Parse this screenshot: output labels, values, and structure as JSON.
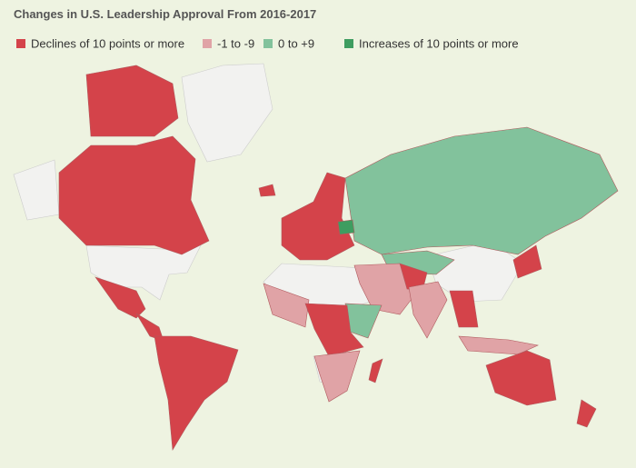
{
  "title": "Changes in U.S. Leadership Approval From 2016-2017",
  "legend": [
    {
      "label": "Declines of 10 points or more",
      "color": "#d4434a"
    },
    {
      "label": "-1 to -9",
      "color": "#e0a3a6"
    },
    {
      "label": "0 to +9",
      "color": "#82c29c"
    },
    {
      "label": "Increases of 10 points or more",
      "color": "#3e9d60"
    }
  ]
}
